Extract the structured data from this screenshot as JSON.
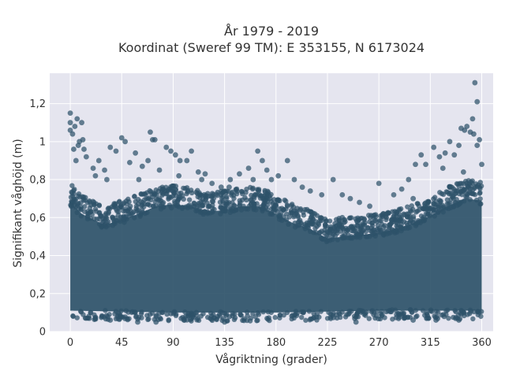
{
  "chart_data": {
    "type": "scatter",
    "title_line1": "År 1979 - 2019",
    "title_line2": "Koordinat (Sweref 99 TM): E 353155, N 6173024",
    "xlabel": "Vågriktning (grader)",
    "ylabel": "Signifikant våghöjd (m)",
    "xlim": [
      -18,
      370
    ],
    "ylim": [
      0,
      1.36
    ],
    "x_ticks": [
      0,
      45,
      90,
      135,
      180,
      225,
      270,
      315,
      360
    ],
    "x_tick_labels": [
      "0",
      "45",
      "90",
      "135",
      "180",
      "225",
      "270",
      "315",
      "360"
    ],
    "y_ticks": [
      0,
      0.2,
      0.4,
      0.6,
      0.8,
      1,
      1.2
    ],
    "y_tick_labels": [
      "0",
      "0,2",
      "0,4",
      "0,6",
      "0,8",
      "1",
      "1,2"
    ],
    "grid": true,
    "marker_color": "#2e5269",
    "background_color": "#e5e5ef",
    "dense_band": {
      "x_range": [
        0,
        360
      ],
      "lower_envelope": [
        [
          0,
          0.08
        ],
        [
          90,
          0.07
        ],
        [
          180,
          0.07
        ],
        [
          270,
          0.08
        ],
        [
          360,
          0.08
        ]
      ],
      "upper_envelope": [
        [
          0,
          0.72
        ],
        [
          10,
          0.66
        ],
        [
          30,
          0.6
        ],
        [
          45,
          0.63
        ],
        [
          60,
          0.66
        ],
        [
          75,
          0.7
        ],
        [
          90,
          0.71
        ],
        [
          105,
          0.7
        ],
        [
          120,
          0.67
        ],
        [
          135,
          0.68
        ],
        [
          150,
          0.7
        ],
        [
          165,
          0.7
        ],
        [
          180,
          0.66
        ],
        [
          195,
          0.61
        ],
        [
          210,
          0.58
        ],
        [
          225,
          0.53
        ],
        [
          240,
          0.54
        ],
        [
          255,
          0.55
        ],
        [
          270,
          0.56
        ],
        [
          285,
          0.58
        ],
        [
          300,
          0.61
        ],
        [
          315,
          0.65
        ],
        [
          330,
          0.7
        ],
        [
          345,
          0.74
        ],
        [
          360,
          0.73
        ]
      ]
    },
    "outlier_points": [
      [
        0,
        1.15
      ],
      [
        0,
        1.1
      ],
      [
        0,
        1.06
      ],
      [
        2,
        1.04
      ],
      [
        4,
        1.08
      ],
      [
        6,
        1.12
      ],
      [
        8,
        1.0
      ],
      [
        10,
        1.1
      ],
      [
        12,
        0.96
      ],
      [
        3,
        0.96
      ],
      [
        5,
        0.9
      ],
      [
        7,
        0.98
      ],
      [
        11,
        1.01
      ],
      [
        14,
        0.92
      ],
      [
        20,
        0.86
      ],
      [
        25,
        0.9
      ],
      [
        30,
        0.85
      ],
      [
        35,
        0.97
      ],
      [
        40,
        0.95
      ],
      [
        45,
        1.02
      ],
      [
        48,
        1.0
      ],
      [
        52,
        0.89
      ],
      [
        57,
        0.94
      ],
      [
        63,
        0.87
      ],
      [
        70,
        1.05
      ],
      [
        72,
        1.01
      ],
      [
        74,
        1.01
      ],
      [
        68,
        0.9
      ],
      [
        78,
        0.85
      ],
      [
        84,
        0.97
      ],
      [
        88,
        0.95
      ],
      [
        92,
        0.93
      ],
      [
        96,
        0.9
      ],
      [
        102,
        0.9
      ],
      [
        106,
        0.95
      ],
      [
        112,
        0.84
      ],
      [
        118,
        0.83
      ],
      [
        124,
        0.78
      ],
      [
        132,
        0.76
      ],
      [
        140,
        0.8
      ],
      [
        148,
        0.83
      ],
      [
        156,
        0.86
      ],
      [
        164,
        0.95
      ],
      [
        168,
        0.9
      ],
      [
        172,
        0.85
      ],
      [
        176,
        0.8
      ],
      [
        182,
        0.82
      ],
      [
        190,
        0.9
      ],
      [
        196,
        0.8
      ],
      [
        203,
        0.76
      ],
      [
        210,
        0.74
      ],
      [
        220,
        0.72
      ],
      [
        230,
        0.8
      ],
      [
        238,
        0.72
      ],
      [
        245,
        0.7
      ],
      [
        253,
        0.68
      ],
      [
        262,
        0.66
      ],
      [
        270,
        0.78
      ],
      [
        277,
        0.62
      ],
      [
        283,
        0.72
      ],
      [
        290,
        0.75
      ],
      [
        296,
        0.8
      ],
      [
        302,
        0.88
      ],
      [
        307,
        0.93
      ],
      [
        311,
        0.88
      ],
      [
        318,
        0.97
      ],
      [
        323,
        0.92
      ],
      [
        328,
        0.94
      ],
      [
        332,
        1.0
      ],
      [
        336,
        0.93
      ],
      [
        340,
        0.98
      ],
      [
        342,
        1.07
      ],
      [
        345,
        1.06
      ],
      [
        347,
        1.08
      ],
      [
        350,
        1.05
      ],
      [
        353,
        1.04
      ],
      [
        356,
        0.98
      ],
      [
        358,
        1.01
      ],
      [
        352,
        1.12
      ],
      [
        354,
        1.31
      ],
      [
        356,
        1.21
      ],
      [
        360,
        0.88
      ],
      [
        344,
        0.84
      ],
      [
        326,
        0.86
      ],
      [
        300,
        0.7
      ],
      [
        274,
        0.55
      ],
      [
        238,
        0.6
      ],
      [
        160,
        0.8
      ],
      [
        139,
        0.76
      ],
      [
        115,
        0.8
      ],
      [
        22,
        0.82
      ],
      [
        32,
        0.8
      ],
      [
        60,
        0.8
      ],
      [
        95,
        0.82
      ]
    ],
    "low_points": [
      [
        35,
        0.06
      ],
      [
        59,
        0.05
      ],
      [
        75,
        0.05
      ],
      [
        135,
        0.05
      ],
      [
        250,
        0.05
      ],
      [
        300,
        0.06
      ],
      [
        320,
        0.06
      ],
      [
        340,
        0.06
      ]
    ]
  }
}
